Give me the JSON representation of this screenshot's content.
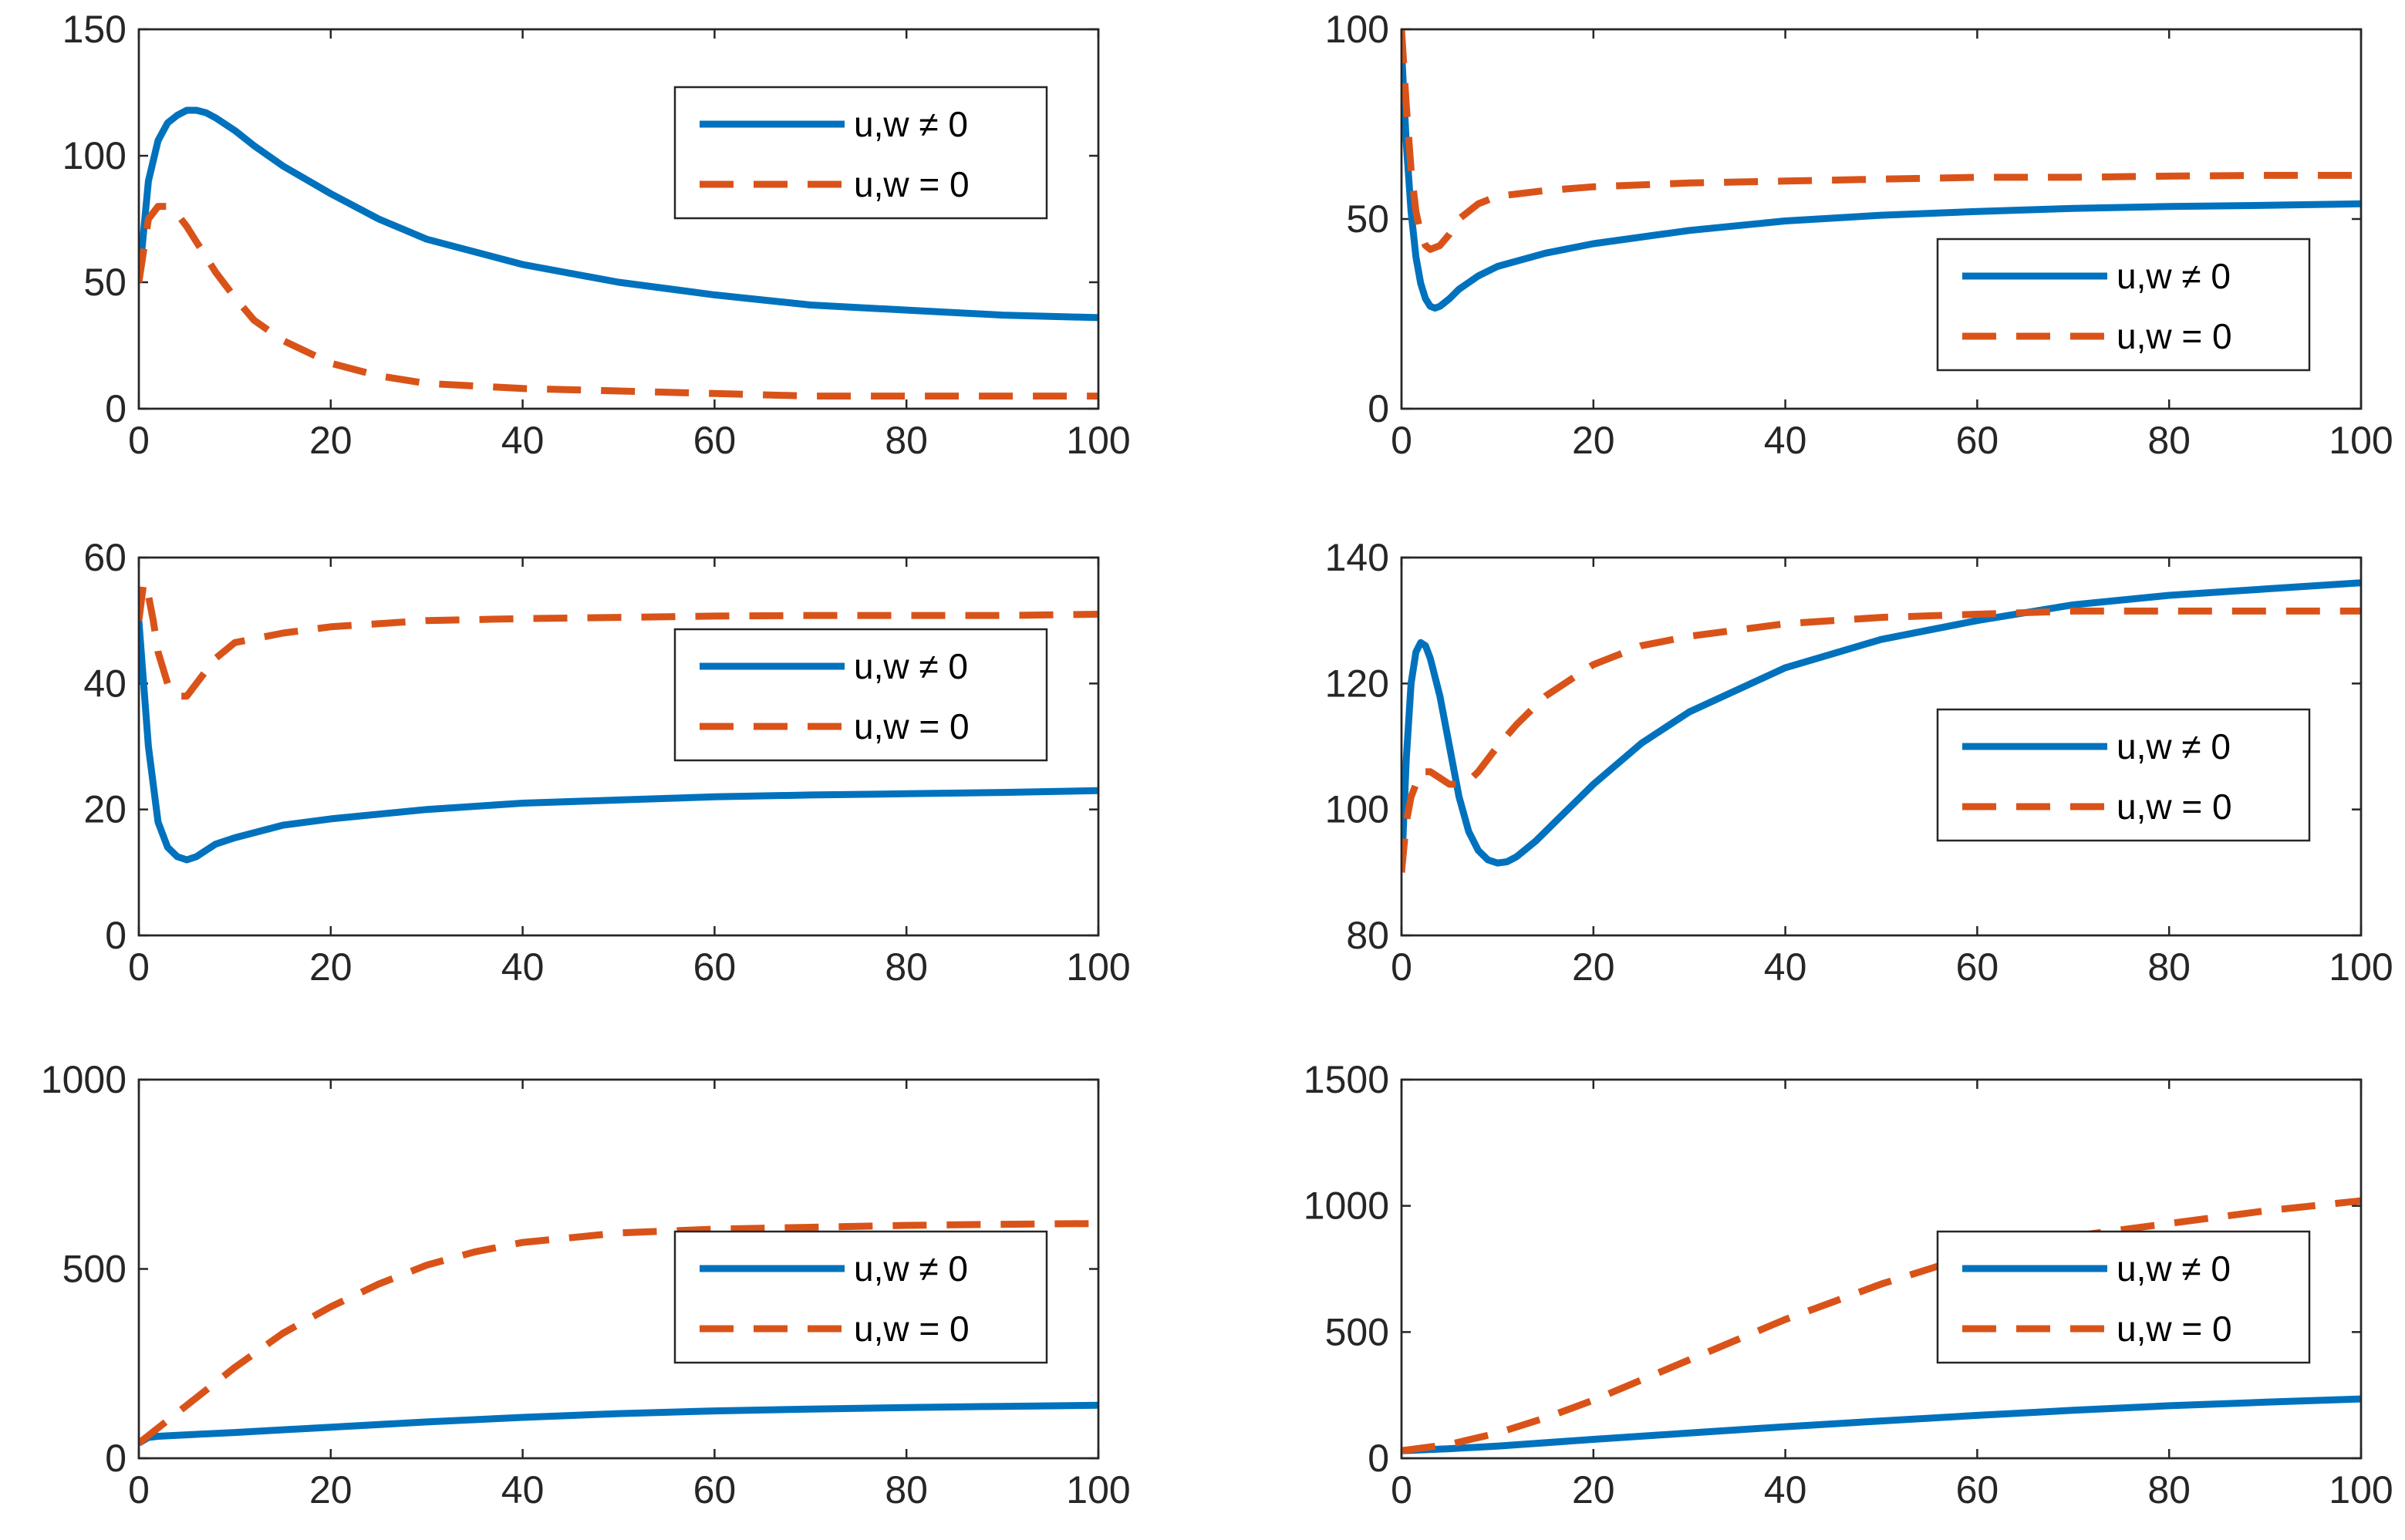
{
  "figure": {
    "colors": {
      "series_1": "#0072BD",
      "series_2": "#D95319",
      "axis": "#262626"
    }
  },
  "chart_data": [
    {
      "type": "line",
      "position": "top-left",
      "xlim": [
        0,
        100
      ],
      "ylim": [
        0,
        150
      ],
      "xticks": [
        0,
        20,
        40,
        60,
        80,
        100
      ],
      "yticks": [
        0,
        50,
        100,
        150
      ],
      "legend": {
        "location": "top-right",
        "entries": [
          "u,w ≠ 0",
          "u,w = 0"
        ]
      },
      "series": [
        {
          "name": "u,w ≠ 0",
          "style": "solid",
          "x": [
            0,
            1,
            2,
            3,
            4,
            5,
            6,
            7,
            8,
            10,
            12,
            15,
            20,
            25,
            30,
            40,
            50,
            60,
            70,
            80,
            90,
            100
          ],
          "y": [
            50,
            90,
            106,
            113,
            116,
            118,
            118,
            117,
            115,
            110,
            104,
            96,
            85,
            75,
            67,
            57,
            50,
            45,
            41,
            39,
            37,
            36
          ]
        },
        {
          "name": "u,w = 0",
          "style": "dashed",
          "x": [
            0,
            1,
            2,
            3,
            4,
            5,
            6,
            8,
            10,
            12,
            15,
            20,
            25,
            30,
            40,
            50,
            60,
            70,
            80,
            90,
            100
          ],
          "y": [
            50,
            75,
            80,
            80,
            77,
            72,
            66,
            54,
            44,
            35,
            27,
            18,
            13,
            10,
            8,
            7,
            6,
            5,
            5,
            5,
            5
          ]
        }
      ]
    },
    {
      "type": "line",
      "position": "top-right",
      "xlim": [
        0,
        100
      ],
      "ylim": [
        0,
        100
      ],
      "xticks": [
        0,
        20,
        40,
        60,
        80,
        100
      ],
      "yticks": [
        0,
        50,
        100
      ],
      "legend": {
        "location": "bottom-right",
        "entries": [
          "u,w ≠ 0",
          "u,w = 0"
        ]
      },
      "series": [
        {
          "name": "u,w ≠ 0",
          "style": "solid",
          "x": [
            0,
            0.5,
            1,
            1.5,
            2,
            2.5,
            3,
            3.5,
            4,
            5,
            6,
            8,
            10,
            15,
            20,
            30,
            40,
            50,
            60,
            70,
            80,
            90,
            100
          ],
          "y": [
            95,
            70,
            52,
            40,
            33,
            29,
            27,
            26.5,
            27,
            29,
            31.5,
            35,
            37.5,
            41,
            43.5,
            47,
            49.5,
            51,
            52,
            52.8,
            53.3,
            53.6,
            54
          ]
        },
        {
          "name": "u,w = 0",
          "style": "dashed",
          "x": [
            0,
            0.5,
            1,
            1.5,
            2,
            2.5,
            3,
            4,
            5,
            6,
            8,
            10,
            15,
            20,
            30,
            40,
            50,
            60,
            70,
            80,
            90,
            100
          ],
          "y": [
            100,
            80,
            63,
            52,
            46,
            43,
            42,
            43,
            46,
            50,
            54,
            56,
            57.5,
            58.5,
            59.5,
            60,
            60.5,
            61,
            61,
            61.3,
            61.5,
            61.5
          ]
        }
      ]
    },
    {
      "type": "line",
      "position": "middle-left",
      "xlim": [
        0,
        100
      ],
      "ylim": [
        0,
        60
      ],
      "xticks": [
        0,
        20,
        40,
        60,
        80,
        100
      ],
      "yticks": [
        0,
        20,
        40,
        60
      ],
      "legend": {
        "location": "right",
        "entries": [
          "u,w ≠ 0",
          "u,w = 0"
        ]
      },
      "series": [
        {
          "name": "u,w ≠ 0",
          "style": "solid",
          "x": [
            0,
            1,
            2,
            3,
            4,
            5,
            6,
            8,
            10,
            15,
            20,
            30,
            40,
            50,
            60,
            70,
            80,
            90,
            100
          ],
          "y": [
            50,
            30,
            18,
            14,
            12.5,
            12,
            12.5,
            14.5,
            15.5,
            17.5,
            18.5,
            20,
            21,
            21.5,
            22,
            22.3,
            22.5,
            22.7,
            23
          ]
        },
        {
          "name": "u,w = 0",
          "style": "dashed",
          "x": [
            0,
            0.5,
            1,
            1.5,
            2,
            3,
            4,
            5,
            6,
            8,
            10,
            15,
            20,
            30,
            40,
            50,
            60,
            70,
            80,
            90,
            100
          ],
          "y": [
            50,
            56,
            54,
            50,
            45,
            40,
            38,
            38,
            40,
            44,
            46.5,
            48,
            49,
            50,
            50.3,
            50.5,
            50.7,
            50.8,
            50.8,
            50.8,
            51
          ]
        }
      ]
    },
    {
      "type": "line",
      "position": "middle-right",
      "xlim": [
        0,
        100
      ],
      "ylim": [
        80,
        140
      ],
      "xticks": [
        0,
        20,
        40,
        60,
        80,
        100
      ],
      "yticks": [
        80,
        100,
        120,
        140
      ],
      "legend": {
        "location": "right",
        "entries": [
          "u,w ≠ 0",
          "u,w = 0"
        ]
      },
      "series": [
        {
          "name": "u,w ≠ 0",
          "style": "solid",
          "x": [
            0,
            0.5,
            1,
            1.5,
            2,
            2.5,
            3,
            4,
            5,
            6,
            7,
            8,
            9,
            10,
            11,
            12,
            14,
            16,
            20,
            25,
            30,
            40,
            50,
            60,
            70,
            80,
            90,
            100
          ],
          "y": [
            90,
            108,
            120,
            125,
            126.5,
            126,
            124,
            118,
            110,
            102,
            96.5,
            93.5,
            92,
            91.5,
            91.7,
            92.5,
            95,
            98,
            104,
            110.5,
            115.5,
            122.5,
            127,
            130,
            132.5,
            134,
            135,
            136
          ]
        },
        {
          "name": "u,w = 0",
          "style": "dashed",
          "x": [
            0,
            0.5,
            1,
            1.5,
            2,
            3,
            4,
            5,
            6,
            7,
            8,
            10,
            12,
            15,
            20,
            25,
            30,
            40,
            50,
            60,
            70,
            80,
            90,
            100
          ],
          "y": [
            90,
            98,
            102,
            104,
            106,
            106,
            105,
            104,
            104,
            104.5,
            106,
            110,
            113.5,
            118,
            123,
            126,
            127.5,
            129.5,
            130.5,
            131,
            131.5,
            131.5,
            131.5,
            131.5
          ]
        }
      ]
    },
    {
      "type": "line",
      "position": "bottom-left",
      "xlim": [
        0,
        100
      ],
      "ylim": [
        0,
        1000
      ],
      "xticks": [
        0,
        20,
        40,
        60,
        80,
        100
      ],
      "yticks": [
        0,
        500,
        1000
      ],
      "legend": {
        "location": "right",
        "entries": [
          "u,w ≠ 0",
          "u,w = 0"
        ]
      },
      "series": [
        {
          "name": "u,w ≠ 0",
          "style": "solid",
          "x": [
            0,
            1,
            2,
            5,
            10,
            20,
            30,
            40,
            50,
            60,
            70,
            80,
            90,
            100
          ],
          "y": [
            40,
            55,
            58,
            62,
            68,
            82,
            96,
            108,
            118,
            125,
            130,
            134,
            137,
            140
          ]
        },
        {
          "name": "u,w = 0",
          "style": "dashed",
          "x": [
            0,
            5,
            10,
            15,
            20,
            25,
            30,
            35,
            40,
            50,
            60,
            70,
            80,
            90,
            100
          ],
          "y": [
            40,
            140,
            240,
            330,
            400,
            460,
            510,
            545,
            570,
            595,
            605,
            610,
            615,
            618,
            620
          ]
        }
      ]
    },
    {
      "type": "line",
      "position": "bottom-right",
      "xlim": [
        0,
        100
      ],
      "ylim": [
        0,
        1500
      ],
      "xticks": [
        0,
        20,
        40,
        60,
        80,
        100
      ],
      "yticks": [
        0,
        500,
        1000,
        1500
      ],
      "legend": {
        "location": "right",
        "entries": [
          "u,w ≠ 0",
          "u,w = 0"
        ]
      },
      "series": [
        {
          "name": "u,w ≠ 0",
          "style": "solid",
          "x": [
            0,
            5,
            10,
            20,
            30,
            40,
            50,
            60,
            70,
            80,
            90,
            100
          ],
          "y": [
            30,
            38,
            48,
            75,
            100,
            125,
            148,
            170,
            190,
            208,
            222,
            235
          ]
        },
        {
          "name": "u,w = 0",
          "style": "dashed",
          "x": [
            0,
            5,
            10,
            15,
            20,
            25,
            30,
            35,
            40,
            45,
            50,
            55,
            60,
            70,
            80,
            90,
            100
          ],
          "y": [
            30,
            55,
            100,
            160,
            230,
            310,
            390,
            470,
            550,
            620,
            690,
            750,
            810,
            880,
            930,
            980,
            1020
          ]
        }
      ]
    }
  ]
}
